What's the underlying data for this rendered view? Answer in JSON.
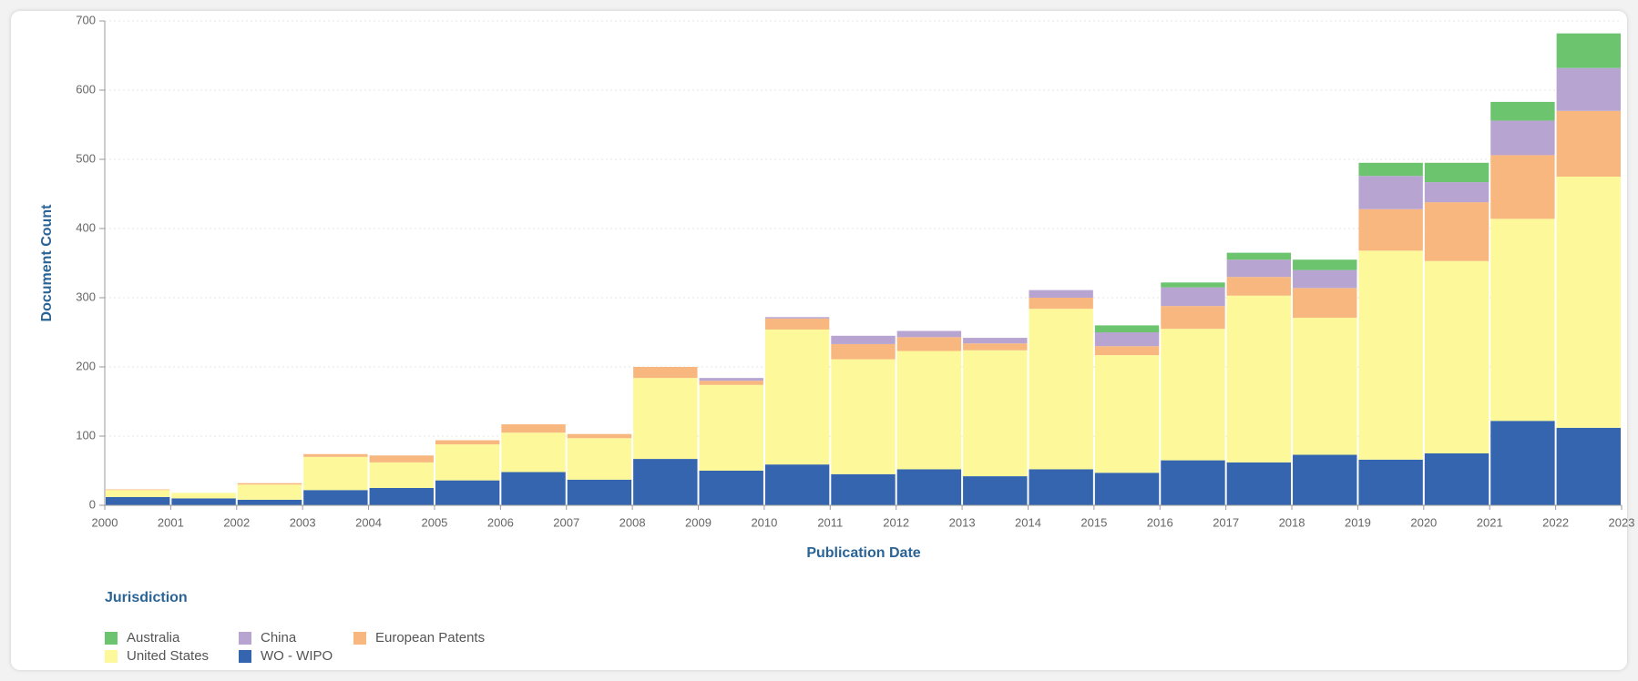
{
  "chart_data": {
    "type": "stacked_bar",
    "x_label": "Publication Date",
    "y_label": "Document Count",
    "legend_title": "Jurisdiction",
    "x": [
      2000,
      2001,
      2002,
      2003,
      2004,
      2005,
      2006,
      2007,
      2008,
      2009,
      2010,
      2011,
      2012,
      2013,
      2014,
      2015,
      2016,
      2017,
      2018,
      2019,
      2020,
      2021,
      2022
    ],
    "xlim": [
      2000,
      2023
    ],
    "xticks": [
      2000,
      2001,
      2002,
      2003,
      2004,
      2005,
      2006,
      2007,
      2008,
      2009,
      2010,
      2011,
      2012,
      2013,
      2014,
      2015,
      2016,
      2017,
      2018,
      2019,
      2020,
      2021,
      2022,
      2023
    ],
    "ylim": [
      0,
      700
    ],
    "yticks": [
      0,
      100,
      200,
      300,
      400,
      500,
      600,
      700
    ],
    "grid": true,
    "series": [
      {
        "name": "Australia",
        "color": "#6cc46f",
        "values": [
          0,
          0,
          0,
          0,
          0,
          0,
          0,
          0,
          0,
          0,
          0,
          0,
          0,
          0,
          0,
          10,
          7,
          10,
          15,
          19,
          28,
          27,
          50
        ]
      },
      {
        "name": "China",
        "color": "#b8a4d1",
        "values": [
          0,
          0,
          0,
          0,
          0,
          0,
          0,
          0,
          0,
          4,
          2,
          12,
          9,
          8,
          11,
          20,
          27,
          25,
          26,
          48,
          29,
          50,
          62
        ]
      },
      {
        "name": "European Patents",
        "color": "#f7b77e",
        "values": [
          1,
          0,
          2,
          4,
          10,
          6,
          12,
          6,
          16,
          6,
          16,
          22,
          20,
          10,
          16,
          13,
          33,
          27,
          43,
          60,
          85,
          92,
          95
        ]
      },
      {
        "name": "United States",
        "color": "#fdf99a",
        "values": [
          10,
          8,
          22,
          48,
          37,
          52,
          57,
          60,
          117,
          124,
          195,
          166,
          171,
          182,
          232,
          170,
          190,
          241,
          198,
          302,
          278,
          292,
          363
        ]
      },
      {
        "name": "WO - WIPO",
        "color": "#3465ae",
        "values": [
          12,
          10,
          8,
          22,
          25,
          36,
          48,
          37,
          67,
          50,
          59,
          45,
          52,
          42,
          52,
          47,
          65,
          62,
          73,
          66,
          75,
          122,
          112
        ]
      }
    ]
  }
}
